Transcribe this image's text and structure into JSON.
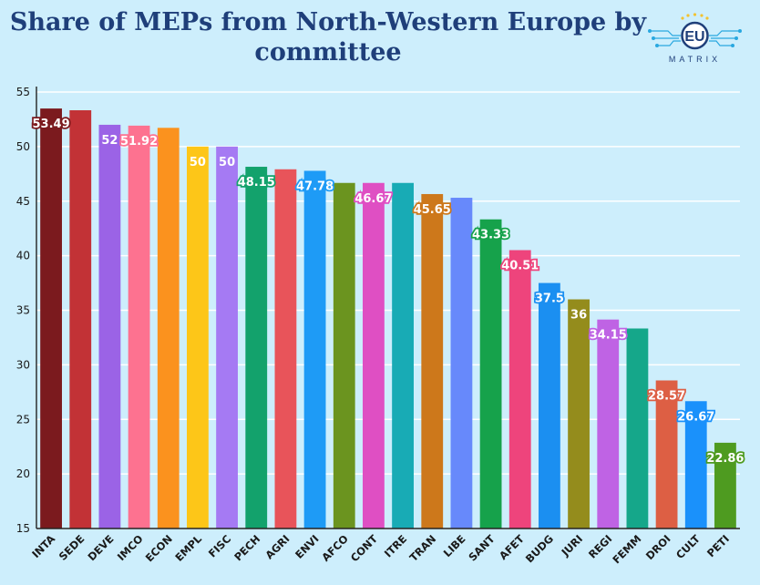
{
  "title": {
    "line1": "Share of MEPs from North-Western Europe by",
    "line2": "committee"
  },
  "logo": {
    "initials": "EU",
    "wordmark": "MATRIX"
  },
  "chart_data": {
    "type": "bar",
    "title": "Share of MEPs from North-Western Europe by committee",
    "xlabel": "",
    "ylabel": "",
    "ylim": [
      15,
      55
    ],
    "yticks": [
      15,
      20,
      25,
      30,
      35,
      40,
      45,
      50,
      55
    ],
    "grid": true,
    "categories": [
      "INTA",
      "SEDE",
      "DEVE",
      "IMCO",
      "ECON",
      "EMPL",
      "FISC",
      "PECH",
      "AGRI",
      "ENVI",
      "AFCO",
      "CONT",
      "ITRE",
      "TRAN",
      "LIBE",
      "SANT",
      "AFET",
      "BUDG",
      "JURI",
      "REGI",
      "FEMM",
      "DROI",
      "CULT",
      "PETI"
    ],
    "values": [
      53.49,
      53.33,
      52,
      51.92,
      51.72,
      50,
      50,
      48.15,
      47.92,
      47.78,
      46.67,
      46.67,
      46.67,
      45.65,
      45.31,
      43.33,
      40.51,
      37.5,
      36,
      34.15,
      33.33,
      28.57,
      26.67,
      22.86
    ],
    "labels": [
      "53.49",
      null,
      "52",
      "51.92",
      null,
      "50",
      "50",
      "48.15",
      null,
      "47.78",
      null,
      "46.67",
      null,
      "45.65",
      null,
      "43.33",
      "40.51",
      "37.5",
      "36",
      "34.15",
      null,
      "28.57",
      "26.67",
      "22.86"
    ],
    "colors": [
      "#7b1a1e",
      "#c23236",
      "#9b63e6",
      "#fd7290",
      "#fb921e",
      "#fdc618",
      "#a57af3",
      "#13a26c",
      "#e8545a",
      "#1e9bf6",
      "#6b941f",
      "#df4fc3",
      "#18abb5",
      "#cd781b",
      "#6789fb",
      "#16a24b",
      "#ee447c",
      "#1b8ff1",
      "#948c1c",
      "#bf63e4",
      "#15a78a",
      "#dd5f44",
      "#1a91fb",
      "#4e9b20"
    ]
  }
}
